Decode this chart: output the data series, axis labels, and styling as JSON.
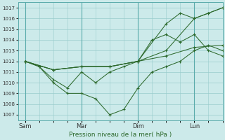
{
  "background_color": "#cceaea",
  "grid_color": "#99cccc",
  "line_color": "#2d6a2d",
  "xlabel": "Pression niveau de la mer( hPa )",
  "xlabel_color": "#2d6a2d",
  "ylim": [
    1006.5,
    1017.5
  ],
  "yticks": [
    1007,
    1008,
    1009,
    1010,
    1011,
    1012,
    1013,
    1014,
    1015,
    1016,
    1017
  ],
  "xtick_labels": [
    "Sam",
    "Mar",
    "Dim",
    "Lun"
  ],
  "xtick_positions": [
    0,
    48,
    96,
    144
  ],
  "xlim": [
    -6,
    168
  ],
  "vline_positions": [
    0,
    48,
    96,
    144
  ],
  "series": [
    {
      "x": [
        0,
        12,
        24,
        36,
        48,
        60,
        72,
        84,
        96,
        108,
        120,
        132,
        144,
        156,
        168
      ],
      "y": [
        1012.0,
        1011.5,
        1010.0,
        1009.0,
        1009.0,
        1008.5,
        1007.0,
        1007.5,
        1009.5,
        1011.0,
        1011.5,
        1012.0,
        1013.0,
        1013.5,
        1013.0
      ]
    },
    {
      "x": [
        0,
        12,
        24,
        36,
        48,
        60,
        72,
        84,
        96,
        108,
        120,
        132,
        144,
        156,
        168
      ],
      "y": [
        1012.0,
        1011.5,
        1010.3,
        1009.5,
        1011.0,
        1010.0,
        1011.0,
        1011.5,
        1012.0,
        1014.0,
        1014.5,
        1013.8,
        1014.5,
        1013.0,
        1012.5
      ]
    },
    {
      "x": [
        0,
        24,
        48,
        72,
        96,
        120,
        144,
        168
      ],
      "y": [
        1012.0,
        1011.2,
        1011.5,
        1011.5,
        1012.0,
        1012.5,
        1013.3,
        1013.5
      ]
    },
    {
      "x": [
        0,
        24,
        48,
        72,
        96,
        120,
        144,
        156,
        168
      ],
      "y": [
        1012.0,
        1011.2,
        1011.5,
        1011.5,
        1012.0,
        1013.0,
        1016.0,
        1016.5,
        1017.0
      ]
    },
    {
      "x": [
        0,
        24,
        48,
        72,
        96,
        120,
        132,
        144,
        156,
        168
      ],
      "y": [
        1012.0,
        1011.2,
        1011.5,
        1011.5,
        1012.0,
        1015.5,
        1016.5,
        1016.0,
        1016.5,
        1017.0
      ]
    }
  ]
}
